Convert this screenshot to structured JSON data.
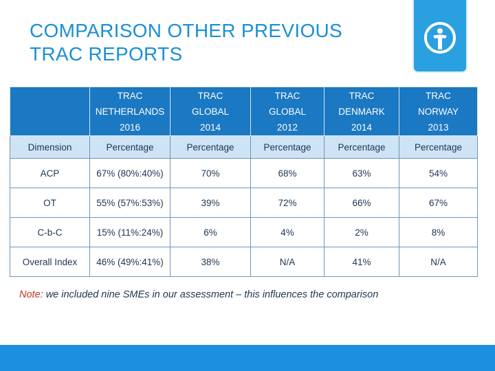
{
  "slide": {
    "title_line1": "COMPARISON OTHER PREVIOUS",
    "title_line2": "TRAC REPORTS",
    "logo_icon": "transparency-international-logo"
  },
  "table": {
    "columns": [
      {
        "l1": "",
        "l2": "",
        "l3": ""
      },
      {
        "l1": "TRAC",
        "l2": "NETHERLANDS",
        "l3": "2016"
      },
      {
        "l1": "TRAC",
        "l2": "GLOBAL",
        "l3": "2014"
      },
      {
        "l1": "TRAC",
        "l2": "GLOBAL",
        "l3": "2012"
      },
      {
        "l1": "TRAC",
        "l2": "DENMARK",
        "l3": "2014"
      },
      {
        "l1": "TRAC",
        "l2": "NORWAY",
        "l3": "2013"
      }
    ],
    "subheader": [
      "Dimension",
      "Percentage",
      "Percentage",
      "Percentage",
      "Percentage",
      "Percentage"
    ],
    "rows": [
      [
        "ACP",
        "67% (80%:40%)",
        "70%",
        "68%",
        "63%",
        "54%"
      ],
      [
        "OT",
        "55% (57%:53%)",
        "39%",
        "72%",
        "66%",
        "67%"
      ],
      [
        "C-b-C",
        "15% (11%:24%)",
        "6%",
        "4%",
        "2%",
        "8%"
      ],
      [
        "Overall Index",
        "46% (49%:41%)",
        "38%",
        "N/A",
        "41%",
        "N/A"
      ]
    ]
  },
  "note": {
    "label": "Note:",
    "text": " we included nine SMEs in our assessment – this influences the comparison"
  },
  "colors": {
    "title": "#1a8fd6",
    "header_bg": "#1b78c2",
    "subheader_bg": "#cfe3f6",
    "footer_bar": "#1c8fe0"
  }
}
